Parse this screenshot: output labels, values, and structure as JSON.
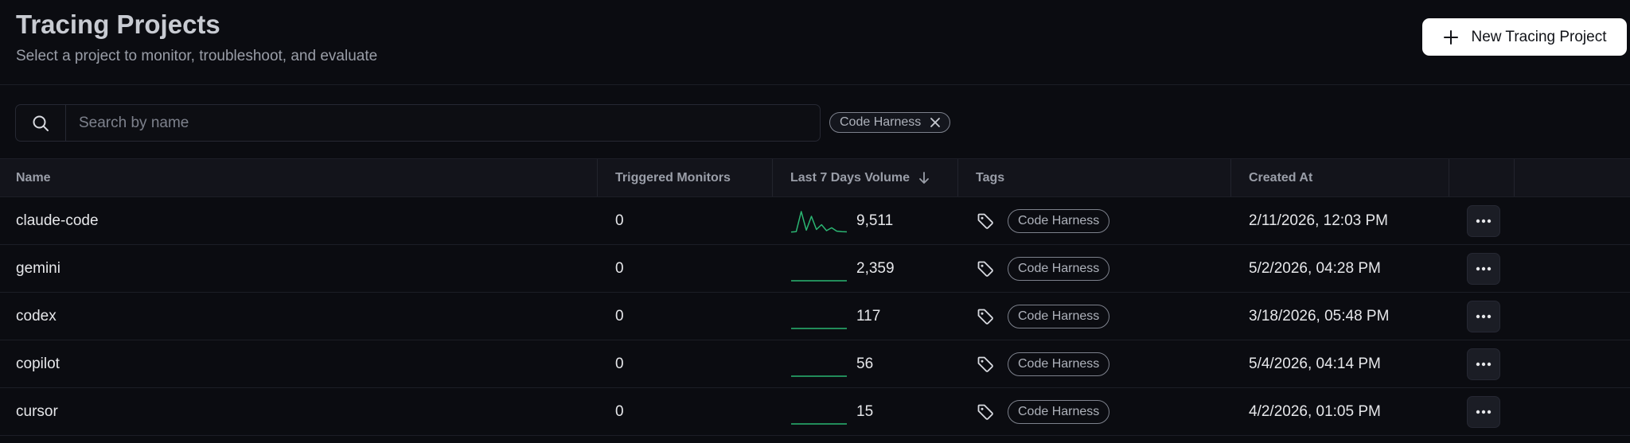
{
  "header": {
    "title": "Tracing Projects",
    "subtitle": "Select a project to monitor, troubleshoot, and evaluate",
    "new_button_label": "New Tracing Project",
    "new_button_icon": "plus-icon"
  },
  "search": {
    "placeholder": "Search by name",
    "value": "",
    "icon": "search-icon"
  },
  "active_filter": {
    "label": "Code Harness",
    "remove_icon": "close-icon"
  },
  "table": {
    "columns": {
      "name": "Name",
      "triggered_monitors": "Triggered Monitors",
      "last_7_days_volume": "Last 7 Days Volume",
      "tags": "Tags",
      "created_at": "Created At"
    },
    "sort": {
      "column": "last_7_days_volume",
      "direction": "desc",
      "icon": "arrow-down-icon"
    },
    "rows": [
      {
        "name": "claude-code",
        "triggered_monitors": "0",
        "volume": "9,511",
        "trend": [
          0.04,
          0.06,
          0.9,
          0.12,
          0.7,
          0.15,
          0.35,
          0.1,
          0.22,
          0.08,
          0.06,
          0.05
        ],
        "tag": "Code Harness",
        "created_at": "2/11/2026, 12:03 PM"
      },
      {
        "name": "gemini",
        "triggered_monitors": "0",
        "volume": "2,359",
        "trend": [
          0.0,
          0.0,
          0.0,
          0.0,
          0.0,
          0.0
        ],
        "tag": "Code Harness",
        "created_at": "5/2/2026, 04:28 PM"
      },
      {
        "name": "codex",
        "triggered_monitors": "0",
        "volume": "117",
        "trend": [
          0.0,
          0.0,
          0.0,
          0.0,
          0.0,
          0.0
        ],
        "tag": "Code Harness",
        "created_at": "3/18/2026, 05:48 PM"
      },
      {
        "name": "copilot",
        "triggered_monitors": "0",
        "volume": "56",
        "trend": [
          0.0,
          0.0,
          0.0,
          0.0,
          0.0,
          0.0
        ],
        "tag": "Code Harness",
        "created_at": "5/4/2026, 04:14 PM"
      },
      {
        "name": "cursor",
        "triggered_monitors": "0",
        "volume": "15",
        "trend": [
          0.0,
          0.0,
          0.0,
          0.0,
          0.0,
          0.0
        ],
        "tag": "Code Harness",
        "created_at": "4/2/2026, 01:05 PM"
      }
    ],
    "row_tag_icon": "tag-icon",
    "row_action_icon": "more-horizontal-icon"
  },
  "colors": {
    "background": "#0b0c11",
    "sparkline": "#2bb673",
    "primary_button_bg": "#ffffff"
  }
}
